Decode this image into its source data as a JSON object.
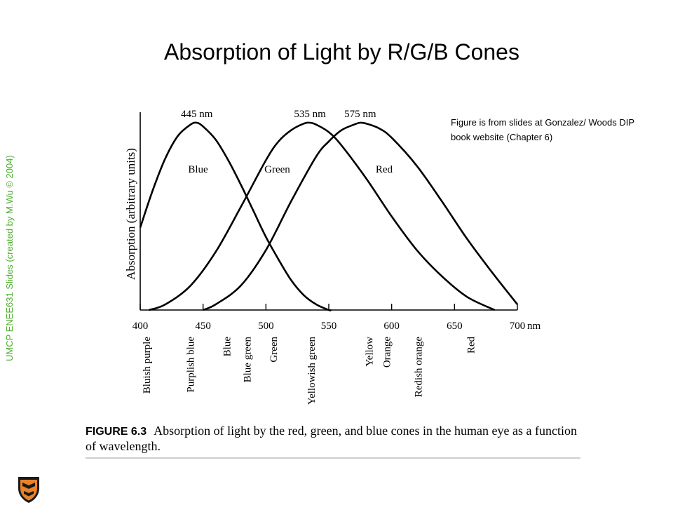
{
  "slide": {
    "title": "Absorption of Light by R/G/B Cones",
    "side_credit": "UMCP ENEE631 Slides (created by M.Wu © 2004)",
    "source_note": "Figure is from slides at Gonzalez/ Woods DIP book website (Chapter 6)",
    "caption_label": "FIGURE 6.3",
    "caption_text": "Absorption of light by the red, green, and blue cones in the human eye as a function of wavelength.",
    "credit_color": "#4caf2c"
  },
  "chart_data": {
    "type": "line",
    "title": "",
    "xlabel": "",
    "ylabel": "Absorption (arbitrary units)",
    "x_unit": "nm",
    "xlim": [
      400,
      700
    ],
    "ylim": [
      0,
      1
    ],
    "x_ticks": [
      400,
      450,
      500,
      550,
      600,
      650,
      700
    ],
    "x_tick_labels": [
      "400",
      "450",
      "500",
      "550",
      "600",
      "650",
      "700"
    ],
    "grid": false,
    "legend": "none",
    "peak_labels": [
      {
        "text": "445 nm",
        "x": 445
      },
      {
        "text": "535 nm",
        "x": 535
      },
      {
        "text": "575 nm",
        "x": 575
      }
    ],
    "series": [
      {
        "name": "Blue",
        "peak": 445,
        "color": "#000000",
        "x": [
          400,
          410,
          420,
          430,
          440,
          445,
          450,
          460,
          470,
          480,
          490,
          500,
          510,
          520,
          530,
          540,
          550,
          552
        ],
        "y": [
          0.44,
          0.64,
          0.81,
          0.93,
          0.99,
          1.0,
          0.98,
          0.91,
          0.8,
          0.67,
          0.53,
          0.39,
          0.27,
          0.16,
          0.08,
          0.03,
          0.0,
          0.0
        ]
      },
      {
        "name": "Green",
        "peak": 535,
        "color": "#000000",
        "x": [
          407,
          420,
          440,
          460,
          480,
          500,
          510,
          520,
          530,
          535,
          540,
          550,
          560,
          580,
          600,
          620,
          640,
          660,
          682
        ],
        "y": [
          0.0,
          0.03,
          0.13,
          0.31,
          0.55,
          0.8,
          0.9,
          0.96,
          0.995,
          1.0,
          0.99,
          0.95,
          0.88,
          0.7,
          0.5,
          0.32,
          0.18,
          0.07,
          0.0
        ]
      },
      {
        "name": "Red",
        "peak": 575,
        "color": "#000000",
        "x": [
          450,
          460,
          480,
          500,
          520,
          540,
          550,
          560,
          570,
          575,
          580,
          590,
          600,
          620,
          640,
          660,
          680,
          700
        ],
        "y": [
          0.0,
          0.03,
          0.13,
          0.32,
          0.58,
          0.82,
          0.9,
          0.96,
          0.99,
          1.0,
          0.995,
          0.97,
          0.92,
          0.77,
          0.58,
          0.38,
          0.2,
          0.03
        ]
      }
    ],
    "color_names": [
      {
        "text": "Bluish purple",
        "x": 405
      },
      {
        "text": "Purplish blue",
        "x": 440
      },
      {
        "text": "Blue",
        "x": 469
      },
      {
        "text": "Blue green",
        "x": 485
      },
      {
        "text": "Green",
        "x": 506
      },
      {
        "text": "Yellowish green",
        "x": 536
      },
      {
        "text": "Yellow",
        "x": 582
      },
      {
        "text": "Orange",
        "x": 596
      },
      {
        "text": "Redish orange",
        "x": 621
      },
      {
        "text": "Red",
        "x": 663
      }
    ]
  }
}
